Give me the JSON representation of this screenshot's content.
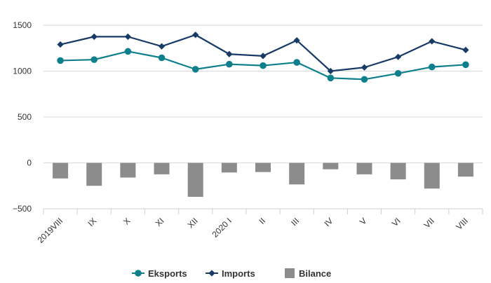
{
  "chart_data": {
    "type": "line",
    "categories": [
      "2019VIII",
      "IX",
      "X",
      "XI",
      "XII",
      "2020 I",
      "II",
      "III",
      "IV",
      "V",
      "VI",
      "VII",
      "VIII"
    ],
    "series": [
      {
        "name": "Eksports",
        "type": "line",
        "color": "#0e7f8c",
        "marker": "circle",
        "values": [
          1115,
          1125,
          1215,
          1145,
          1020,
          1075,
          1060,
          1095,
          925,
          910,
          975,
          1045,
          1070
        ]
      },
      {
        "name": "Imports",
        "type": "line",
        "color": "#173a66",
        "marker": "diamond",
        "values": [
          1290,
          1375,
          1375,
          1270,
          1395,
          1185,
          1165,
          1335,
          1000,
          1040,
          1155,
          1325,
          1230
        ]
      },
      {
        "name": "Bilance",
        "type": "bar",
        "color": "#8c8c8c",
        "values": [
          -170,
          -250,
          -160,
          -125,
          -370,
          -105,
          -100,
          -235,
          -70,
          -125,
          -180,
          -280,
          -150
        ]
      }
    ],
    "yticks": [
      1500,
      1000,
      500,
      0,
      -500
    ],
    "ytick_labels": [
      "1500",
      "1000",
      "500",
      "0",
      "−500"
    ],
    "ylim": [
      -500,
      1500
    ],
    "grid": true,
    "legend_position": "bottom-center"
  }
}
